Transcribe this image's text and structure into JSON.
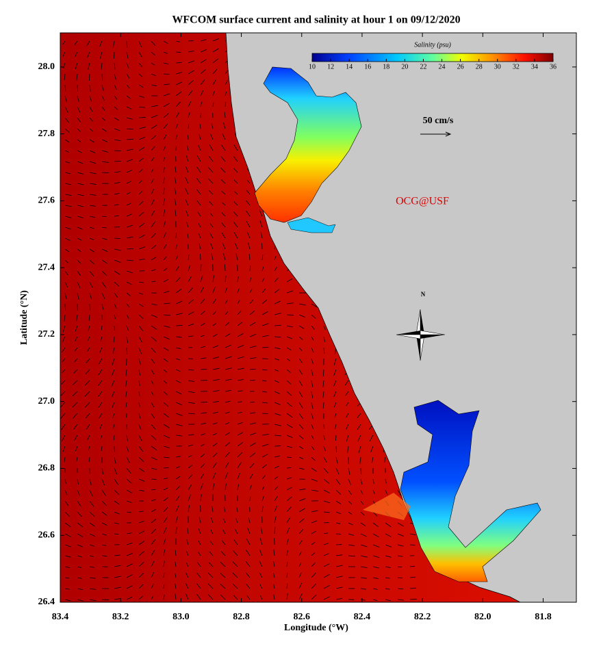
{
  "title": "WFCOM surface current and salinity at hour 1 on 09/12/2020",
  "x_label": "Longitude (°W)",
  "y_label": "Latitude (°N)",
  "xlim": [
    83.4,
    81.69
  ],
  "ylim": [
    26.4,
    28.102
  ],
  "xticks": [
    83.4,
    83.2,
    {
      "value": 83,
      "label": "83.0"
    },
    82.8,
    82.6,
    82.4,
    82.2,
    {
      "value": 82,
      "label": "82.0"
    },
    81.8
  ],
  "yticks": [
    {
      "value": 28,
      "label": "28.0"
    },
    27.8,
    27.6,
    27.4,
    27.2,
    {
      "value": 27,
      "label": "27.0"
    },
    26.8,
    26.6,
    26.4
  ],
  "colorbar": {
    "label": "Salinity (psu)",
    "lim": [
      10,
      36
    ],
    "ticks": [
      10,
      12,
      14,
      16,
      18,
      20,
      22,
      24,
      26,
      28,
      30,
      32,
      34,
      36
    ]
  },
  "scale_arrow_label": "50 cm/s",
  "credit": "OCG@USF",
  "compass_label": "N"
}
